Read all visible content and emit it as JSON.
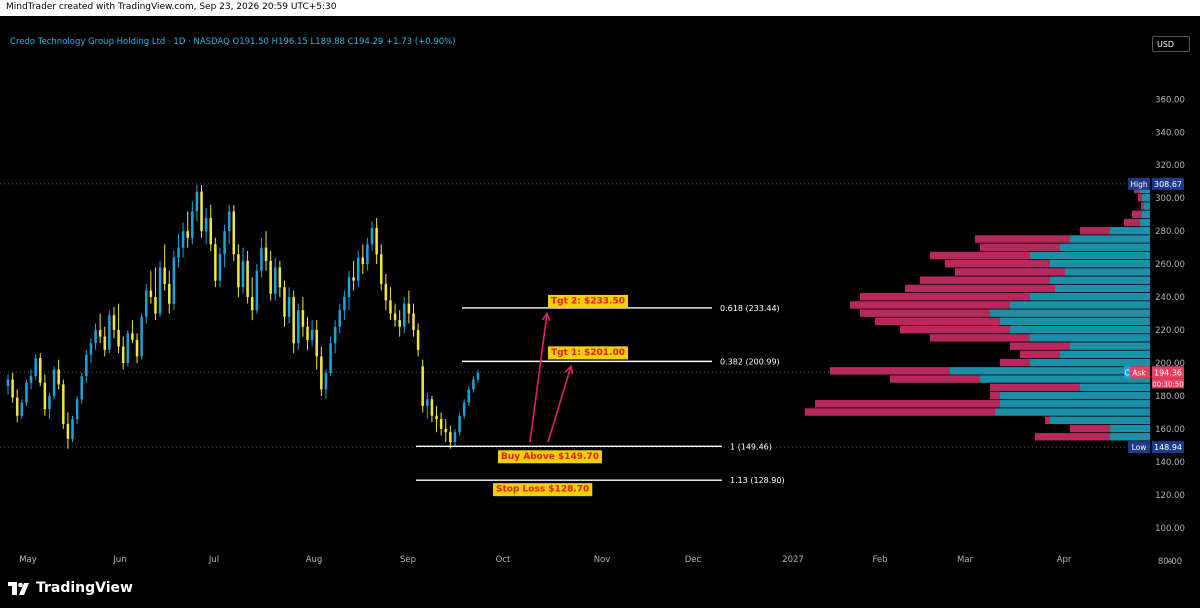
{
  "header": {
    "caption": "MindTrader created with TradingView.com, Sep 23, 2026 20:59 UTC+5:30"
  },
  "legend": {
    "text": "Credo Technology Group Holding Ltd · 1D · NASDAQ  O191.50  H196.15  L189.88  C194.29  +1.73 (+0.90%)"
  },
  "currency_button": "USD",
  "brand": {
    "name": "TradingView"
  },
  "colors": {
    "background": "#000000",
    "candle_up": "#26a69a",
    "candle_up_fill": "#1fa0d8",
    "candle_down": "#f0e442",
    "volume_profile_up": "#1c8fa8",
    "volume_profile_down": "#b8285c",
    "annotation_bg": "#f5d000",
    "annotation_text": "#e0201e",
    "arrow": "#e0206a",
    "level_line": "#ffffff"
  },
  "chart_data": {
    "type": "candlestick",
    "ticker": "Credo Technology Group Holding Ltd",
    "interval": "1D",
    "exchange": "NASDAQ",
    "ohlc_last": {
      "open": 191.5,
      "high": 196.15,
      "low": 189.88,
      "close": 194.29,
      "change": 1.73,
      "change_pct": 0.9
    },
    "y_axis": {
      "ticks": [
        80,
        100,
        120,
        140,
        160,
        180,
        200,
        220,
        240,
        260,
        280,
        300,
        320,
        340,
        360
      ]
    },
    "x_axis": {
      "labels": [
        "May",
        "Jun",
        "Jul",
        "Aug",
        "Sep",
        "Oct",
        "Nov",
        "Dec",
        "2027",
        "Feb",
        "Mar",
        "Apr"
      ]
    },
    "price_labels": [
      {
        "tag": "High",
        "value": "308.67"
      },
      {
        "tag": "Ask",
        "value": "194.36",
        "sub": "00:30:50"
      },
      {
        "tag": "Low",
        "value": "148.94"
      }
    ],
    "price_label_extra": "C",
    "corner_label": "A",
    "fib_levels": [
      {
        "ratio_label": "0.618 (233.44)",
        "price": 233.44
      },
      {
        "ratio_label": "0.382 (200.99)",
        "price": 200.99
      },
      {
        "ratio_label": "1 (149.46)",
        "price": 149.46
      },
      {
        "ratio_label": "1.13 (128.90)",
        "price": 128.9
      }
    ],
    "annotations": [
      {
        "text": "Tgt 2: $233.50",
        "price": 233.44
      },
      {
        "text": "Tgt 1: $201.00",
        "price": 200.99
      },
      {
        "text": "Buy Above $149.70",
        "price": 149.46
      },
      {
        "text": "Stop Loss $128.70",
        "price": 128.9
      }
    ],
    "candles": [
      [
        186,
        193,
        181,
        190
      ],
      [
        190,
        194,
        176,
        179
      ],
      [
        179,
        184,
        164,
        168
      ],
      [
        168,
        178,
        166,
        176
      ],
      [
        176,
        190,
        174,
        188
      ],
      [
        188,
        196,
        184,
        192
      ],
      [
        192,
        205,
        190,
        203
      ],
      [
        203,
        206,
        186,
        188
      ],
      [
        188,
        193,
        168,
        172
      ],
      [
        172,
        182,
        166,
        180
      ],
      [
        180,
        198,
        178,
        196
      ],
      [
        196,
        202,
        184,
        187
      ],
      [
        187,
        190,
        160,
        163
      ],
      [
        163,
        170,
        148,
        154
      ],
      [
        154,
        168,
        152,
        166
      ],
      [
        166,
        180,
        163,
        178
      ],
      [
        178,
        194,
        175,
        192
      ],
      [
        192,
        208,
        188,
        205
      ],
      [
        205,
        215,
        200,
        212
      ],
      [
        212,
        224,
        208,
        220
      ],
      [
        220,
        230,
        212,
        216
      ],
      [
        216,
        222,
        204,
        208
      ],
      [
        208,
        232,
        206,
        229
      ],
      [
        229,
        234,
        215,
        220
      ],
      [
        220,
        236,
        206,
        210
      ],
      [
        210,
        216,
        196,
        200
      ],
      [
        200,
        220,
        198,
        218
      ],
      [
        218,
        226,
        212,
        214
      ],
      [
        214,
        218,
        200,
        204
      ],
      [
        204,
        230,
        202,
        228
      ],
      [
        228,
        248,
        224,
        244
      ],
      [
        244,
        256,
        236,
        240
      ],
      [
        240,
        258,
        226,
        230
      ],
      [
        230,
        262,
        228,
        258
      ],
      [
        258,
        272,
        244,
        248
      ],
      [
        248,
        256,
        230,
        236
      ],
      [
        236,
        268,
        232,
        264
      ],
      [
        264,
        278,
        258,
        270
      ],
      [
        270,
        285,
        264,
        280
      ],
      [
        280,
        292,
        270,
        276
      ],
      [
        276,
        298,
        272,
        292
      ],
      [
        292,
        308,
        286,
        304
      ],
      [
        304,
        308,
        276,
        280
      ],
      [
        280,
        294,
        272,
        288
      ],
      [
        288,
        296,
        268,
        272
      ],
      [
        272,
        276,
        246,
        250
      ],
      [
        250,
        270,
        246,
        266
      ],
      [
        266,
        284,
        258,
        280
      ],
      [
        280,
        296,
        272,
        292
      ],
      [
        292,
        296,
        262,
        266
      ],
      [
        266,
        272,
        240,
        246
      ],
      [
        246,
        270,
        242,
        262
      ],
      [
        262,
        268,
        236,
        240
      ],
      [
        240,
        252,
        226,
        232
      ],
      [
        232,
        260,
        230,
        256
      ],
      [
        256,
        276,
        252,
        270
      ],
      [
        270,
        280,
        256,
        262
      ],
      [
        262,
        268,
        238,
        242
      ],
      [
        242,
        264,
        238,
        258
      ],
      [
        258,
        262,
        240,
        246
      ],
      [
        246,
        250,
        222,
        228
      ],
      [
        228,
        246,
        224,
        240
      ],
      [
        240,
        244,
        206,
        212
      ],
      [
        212,
        236,
        208,
        232
      ],
      [
        232,
        240,
        216,
        222
      ],
      [
        222,
        228,
        208,
        214
      ],
      [
        214,
        226,
        210,
        220
      ],
      [
        220,
        226,
        196,
        204
      ],
      [
        204,
        210,
        180,
        184
      ],
      [
        184,
        196,
        178,
        194
      ],
      [
        194,
        216,
        192,
        212
      ],
      [
        212,
        226,
        206,
        222
      ],
      [
        222,
        236,
        218,
        232
      ],
      [
        232,
        244,
        226,
        240
      ],
      [
        240,
        256,
        232,
        252
      ],
      [
        252,
        262,
        244,
        250
      ],
      [
        250,
        268,
        246,
        264
      ],
      [
        264,
        272,
        254,
        260
      ],
      [
        260,
        276,
        256,
        272
      ],
      [
        272,
        286,
        268,
        282
      ],
      [
        282,
        288,
        260,
        266
      ],
      [
        266,
        272,
        244,
        248
      ],
      [
        248,
        254,
        232,
        238
      ],
      [
        238,
        246,
        226,
        230
      ],
      [
        230,
        236,
        222,
        226
      ],
      [
        226,
        232,
        216,
        222
      ],
      [
        222,
        240,
        218,
        236
      ],
      [
        236,
        244,
        224,
        230
      ],
      [
        230,
        236,
        216,
        220
      ],
      [
        220,
        224,
        204,
        208
      ],
      [
        198,
        202,
        170,
        174
      ],
      [
        174,
        182,
        166,
        178
      ],
      [
        178,
        180,
        164,
        168
      ],
      [
        168,
        174,
        158,
        166
      ],
      [
        166,
        170,
        156,
        160
      ],
      [
        160,
        166,
        152,
        158
      ],
      [
        158,
        162,
        148,
        152
      ],
      [
        152,
        160,
        149,
        158
      ],
      [
        158,
        170,
        156,
        168
      ],
      [
        168,
        178,
        166,
        176
      ],
      [
        176,
        186,
        174,
        184
      ],
      [
        184,
        192,
        182,
        190
      ],
      [
        190,
        196,
        188,
        194
      ]
    ],
    "volume_profile": [
      {
        "price": 305,
        "up": 10,
        "down": 6
      },
      {
        "price": 300,
        "up": 8,
        "down": 4
      },
      {
        "price": 295,
        "up": 6,
        "down": 3
      },
      {
        "price": 290,
        "up": 8,
        "down": 10
      },
      {
        "price": 285,
        "up": 10,
        "down": 16
      },
      {
        "price": 280,
        "up": 40,
        "down": 30
      },
      {
        "price": 275,
        "up": 80,
        "down": 95
      },
      {
        "price": 270,
        "up": 90,
        "down": 80
      },
      {
        "price": 265,
        "up": 120,
        "down": 100
      },
      {
        "price": 260,
        "up": 100,
        "down": 105
      },
      {
        "price": 255,
        "up": 85,
        "down": 110
      },
      {
        "price": 250,
        "up": 100,
        "down": 130
      },
      {
        "price": 245,
        "up": 95,
        "down": 150
      },
      {
        "price": 240,
        "up": 120,
        "down": 170
      },
      {
        "price": 235,
        "up": 140,
        "down": 160
      },
      {
        "price": 230,
        "up": 160,
        "down": 130
      },
      {
        "price": 225,
        "up": 150,
        "down": 125
      },
      {
        "price": 220,
        "up": 140,
        "down": 110
      },
      {
        "price": 215,
        "up": 120,
        "down": 100
      },
      {
        "price": 210,
        "up": 80,
        "down": 60
      },
      {
        "price": 205,
        "up": 90,
        "down": 40
      },
      {
        "price": 200,
        "up": 120,
        "down": 30
      },
      {
        "price": 195,
        "up": 200,
        "down": 120
      },
      {
        "price": 190,
        "up": 170,
        "down": 90
      },
      {
        "price": 185,
        "up": 70,
        "down": 90
      },
      {
        "price": 180,
        "up": 150,
        "down": 10
      },
      {
        "price": 175,
        "up": 150,
        "down": 185
      },
      {
        "price": 170,
        "up": 155,
        "down": 190
      },
      {
        "price": 165,
        "up": 100,
        "down": 5
      },
      {
        "price": 160,
        "up": 40,
        "down": 40
      },
      {
        "price": 155,
        "up": 40,
        "down": 75
      }
    ]
  }
}
